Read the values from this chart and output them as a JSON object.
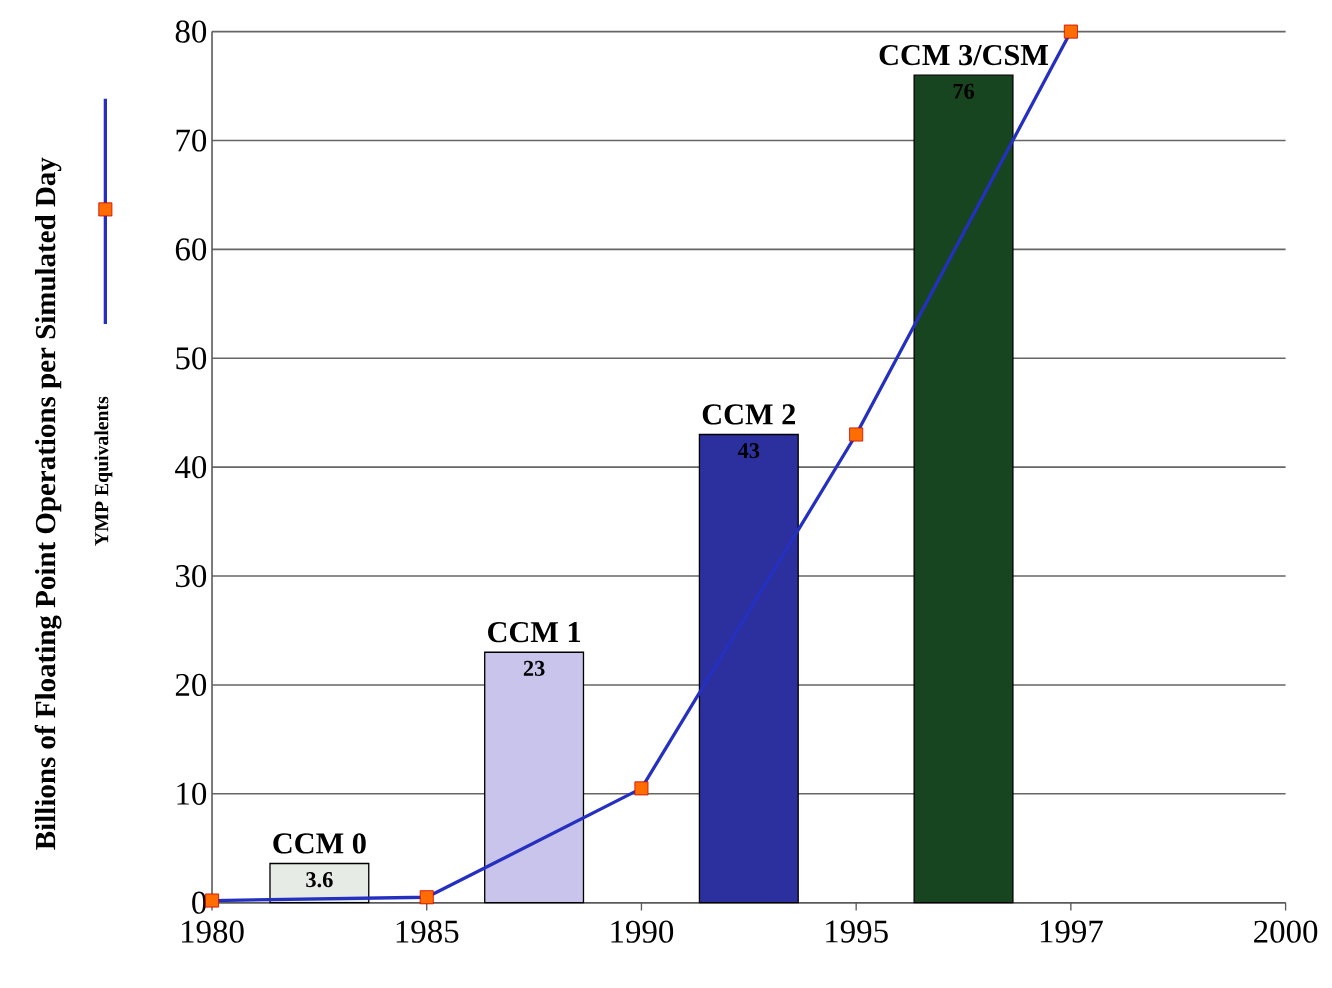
{
  "chart_data": {
    "type": "bar",
    "ylabel": "Billions of Floating Point Operations per Simulated Day",
    "categories": [
      "1980",
      null,
      "1985",
      null,
      "1990",
      null,
      "1995",
      null,
      "1997",
      null,
      "2000"
    ],
    "ylim": [
      0,
      80
    ],
    "yticks": [
      0,
      10,
      20,
      30,
      40,
      50,
      60,
      70,
      80
    ],
    "grid": "y",
    "legend": "left",
    "series": [
      {
        "values": [
          null,
          3.6,
          null,
          23,
          null,
          43,
          null,
          76,
          null,
          null,
          null
        ],
        "value_labels": [
          null,
          "3.6",
          null,
          "23",
          null,
          "43",
          null,
          "76",
          null,
          null,
          null
        ],
        "colors": [
          null,
          "#e6ebe6",
          null,
          "#c9c4ec",
          null,
          "#2b309e",
          null,
          "#17451f",
          null,
          null,
          null
        ]
      },
      {
        "type": "line",
        "name": "YMP Equivalents",
        "color": "#2530c0",
        "marker": "square",
        "values": [
          0.2,
          null,
          0.5,
          null,
          10.5,
          null,
          43,
          null,
          80,
          null,
          null
        ]
      }
    ],
    "annotations": [
      {
        "text": "CCM 0",
        "y": 3.6
      },
      {
        "text": "CCM 1",
        "y": 23
      },
      {
        "text": "CCM 2",
        "y": 43
      },
      {
        "text": "CCM 3/CSM",
        "y": 76
      }
    ]
  }
}
